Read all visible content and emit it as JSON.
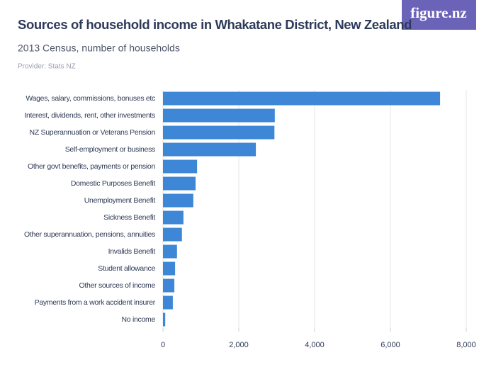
{
  "chart_data": {
    "type": "bar",
    "orientation": "horizontal",
    "title": "Sources of household income in Whakatane District, New Zealand",
    "subtitle": "2013 Census, number of households",
    "provider": "Provider: Stats NZ",
    "logo": "figure.nz",
    "categories": [
      "Wages, salary, commissions, bonuses etc",
      "Interest, dividends, rent, other investments",
      "NZ Superannuation or Veterans Pension",
      "Self-employment or business",
      "Other govt benefits, payments or pension",
      "Domestic Purposes Benefit",
      "Unemployment Benefit",
      "Sickness Benefit",
      "Other superannuation, pensions, annuities",
      "Invalids Benefit",
      "Student allowance",
      "Other sources of income",
      "Payments from a work accident insurer",
      "No income"
    ],
    "values": [
      7310,
      2950,
      2940,
      2450,
      900,
      860,
      800,
      540,
      500,
      370,
      320,
      300,
      260,
      60
    ],
    "color": "#3d87d6",
    "xlim": [
      0,
      8000
    ],
    "xticks": [
      0,
      {
        "value": 2000,
        "label": "2,000"
      },
      {
        "value": 4000,
        "label": "4,000"
      },
      {
        "value": 6000,
        "label": "6,000"
      },
      {
        "value": 8000,
        "label": "8,000"
      }
    ],
    "grid": true
  }
}
